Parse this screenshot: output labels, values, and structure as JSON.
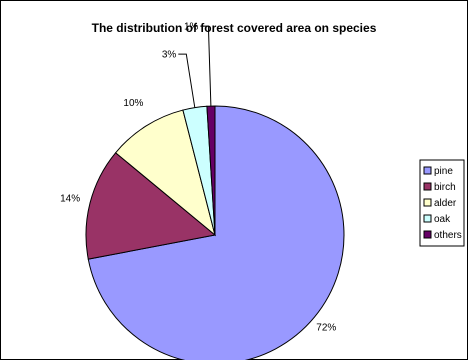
{
  "chart_data": {
    "type": "pie",
    "title": "The distribution of forest covered area on species",
    "categories": [
      "pine",
      "birch",
      "alder",
      "oak",
      "others"
    ],
    "values": [
      72,
      14,
      10,
      3,
      1
    ],
    "value_labels": [
      "72%",
      "14%",
      "10%",
      "3%",
      "1%"
    ],
    "colors": [
      "#9999ff",
      "#993366",
      "#ffffcc",
      "#ccffff",
      "#660066"
    ],
    "legend_position": "right"
  }
}
